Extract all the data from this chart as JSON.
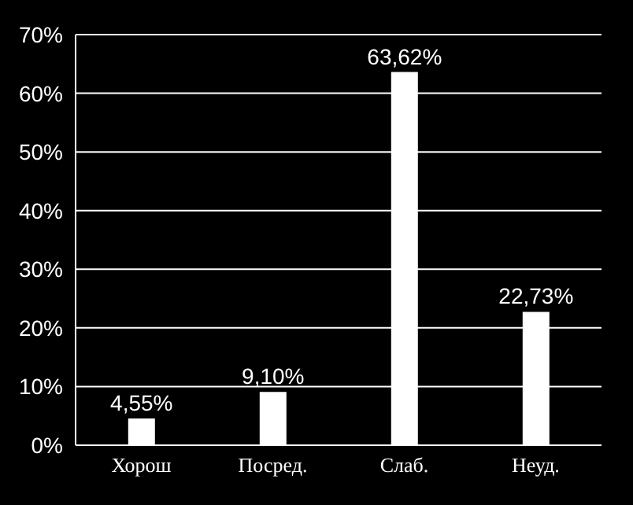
{
  "chart_data": {
    "type": "bar",
    "categories": [
      "Хорош",
      "Посред.",
      "Слаб.",
      "Неуд."
    ],
    "values": [
      4.55,
      9.1,
      63.62,
      22.73
    ],
    "value_labels": [
      "4,55%",
      "9,10%",
      "63,62%",
      "22,73%"
    ],
    "color": "#ffffff",
    "ylim": [
      0,
      70
    ],
    "yticks": [
      {
        "value": 0,
        "label": "0%"
      },
      {
        "value": 10,
        "label": "10%"
      },
      {
        "value": 20,
        "label": "20%"
      },
      {
        "value": 30,
        "label": "30%"
      },
      {
        "value": 40,
        "label": "40%"
      },
      {
        "value": 50,
        "label": "50%"
      },
      {
        "value": 60,
        "label": "60%"
      },
      {
        "value": 70,
        "label": "70%"
      }
    ],
    "grid": "y"
  }
}
